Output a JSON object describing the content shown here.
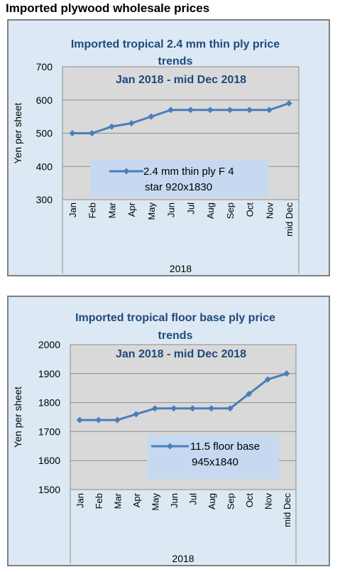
{
  "page_title": "Imported plywood wholesale prices",
  "chart_data": [
    {
      "type": "line",
      "title_line1": "Imported tropical 2.4 mm thin ply price",
      "title_line2": "trends",
      "subtitle": "Jan 2018 -  mid Dec 2018",
      "ylabel": "Yen per sheet",
      "xlabel": "2018",
      "ylim": [
        300,
        700
      ],
      "yticks": [
        300,
        400,
        500,
        600,
        700
      ],
      "categories": [
        "Jan",
        "Feb",
        "Mar",
        "Apr",
        "May",
        "Jun",
        "Jul",
        "Aug",
        "Sep",
        "Oct",
        "Nov",
        "mid Dec"
      ],
      "series": [
        {
          "name": "2.4 mm thin ply F 4 star 920x1830",
          "legend_line1": "2.4 mm thin ply F 4",
          "legend_line2": "star 920x1830",
          "values": [
            500,
            500,
            520,
            530,
            550,
            570,
            570,
            570,
            570,
            570,
            570,
            590
          ],
          "color": "#4a7ebb"
        }
      ],
      "grid": true,
      "legend_placement": "bottom-center",
      "plot_background": "#d9d9d9"
    },
    {
      "type": "line",
      "title_line1": "Imported tropical floor base ply price",
      "title_line2": "trends",
      "subtitle": "Jan 2018 - mid Dec 2018",
      "ylabel": "Yen per sheet",
      "xlabel": "2018",
      "ylim": [
        1500,
        2000
      ],
      "yticks": [
        1500,
        1600,
        1700,
        1800,
        1900,
        2000
      ],
      "categories": [
        "Jan",
        "Feb",
        "Mar",
        "Apr",
        "May",
        "Jun",
        "Jul",
        "Aug",
        "Sep",
        "Oct",
        "Nov",
        "mid Dec"
      ],
      "series": [
        {
          "name": "11.5 floor base 945x1840",
          "legend_line1": "11.5 floor base",
          "legend_line2": "945x1840",
          "values": [
            1740,
            1740,
            1740,
            1760,
            1780,
            1780,
            1780,
            1780,
            1780,
            1830,
            1880,
            1900
          ],
          "color": "#4a7ebb"
        }
      ],
      "grid": true,
      "legend_placement": "bottom-right",
      "plot_background": "#d9d9d9"
    }
  ]
}
